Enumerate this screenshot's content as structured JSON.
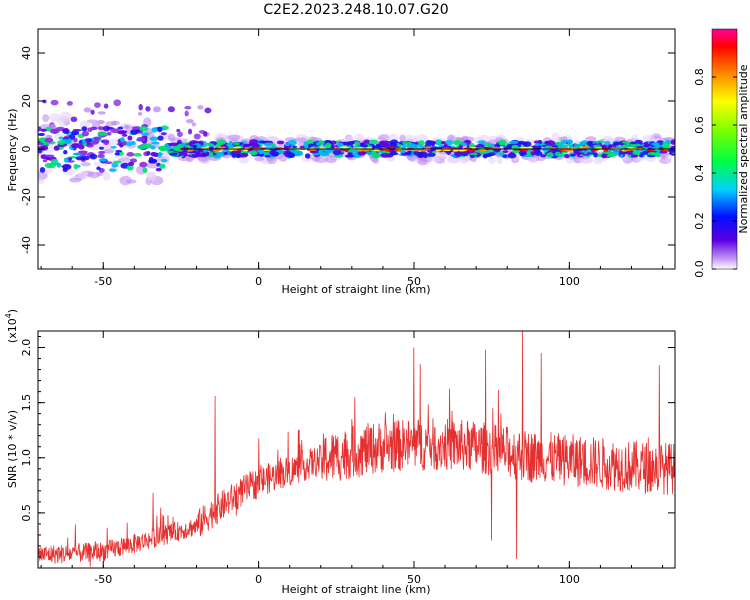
{
  "title": "C2E2.2023.248.10.07.G20",
  "colors": {
    "snr_line": "#e53030",
    "center_line": "#111111"
  },
  "chart_data": [
    {
      "type": "heatmap",
      "xlabel": "Height of straight line (km)",
      "ylabel": "Frequency (Hz)",
      "xlim": [
        -71,
        134
      ],
      "ylim": [
        -50,
        50
      ],
      "xticks": [
        -50,
        0,
        50,
        100
      ],
      "yticks": [
        -40,
        -20,
        0,
        20,
        40
      ],
      "ytick_labels": [
        "-40",
        "-20",
        "0",
        "20",
        "40"
      ],
      "colorbar": {
        "label": "Normalized spectral amplitude",
        "range": [
          0.0,
          1.0
        ],
        "ticks": [
          0.0,
          0.2,
          0.4,
          0.6,
          0.8
        ],
        "tick_labels": [
          "0.0",
          "0.2",
          "0.4",
          "0.6",
          "0.8"
        ]
      },
      "grid": false
    },
    {
      "type": "line",
      "xlabel": "Height of straight line (km)",
      "ylabel": "SNR (10 * v/v)",
      "y_multiplier": "(x10",
      "y_multiplier_exp": "4",
      "y_multiplier_close": ")",
      "xlim": [
        -71,
        134
      ],
      "ylim": [
        0,
        2.15
      ],
      "xticks": [
        -50,
        0,
        50,
        100
      ],
      "yticks": [
        0.5,
        1.0,
        1.5,
        2.0
      ],
      "ytick_labels": [
        "0.5",
        "1.0",
        "1.5",
        "2.0"
      ],
      "envelope": {
        "x": [
          -71,
          -60,
          -50,
          -40,
          -30,
          -20,
          -15,
          -10,
          -5,
          0,
          10,
          20,
          30,
          40,
          50,
          60,
          70,
          80,
          90,
          100,
          110,
          120,
          134
        ],
        "y": [
          0.12,
          0.13,
          0.15,
          0.22,
          0.3,
          0.38,
          0.5,
          0.6,
          0.7,
          0.78,
          0.88,
          0.98,
          1.05,
          1.1,
          1.12,
          1.12,
          1.1,
          1.05,
          1.0,
          0.98,
          0.95,
          0.92,
          0.9
        ]
      },
      "spikes": [
        {
          "x": -71,
          "y": 0.5
        },
        {
          "x": -34,
          "y": 0.68
        },
        {
          "x": -14,
          "y": 1.56
        },
        {
          "x": 7,
          "y": 1.0
        },
        {
          "x": 31,
          "y": 1.55
        },
        {
          "x": 50,
          "y": 2.0
        },
        {
          "x": 52,
          "y": 1.85
        },
        {
          "x": 73,
          "y": 1.98
        },
        {
          "x": 85,
          "y": 2.15
        },
        {
          "x": 91,
          "y": 1.95
        },
        {
          "x": 129,
          "y": 1.84
        },
        {
          "x": 83,
          "y": 0.08
        },
        {
          "x": 75,
          "y": 0.25
        }
      ],
      "grid": false
    }
  ]
}
